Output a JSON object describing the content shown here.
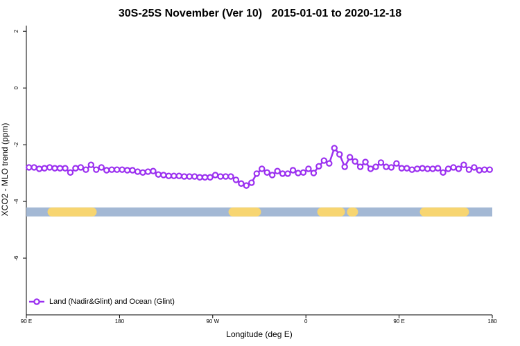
{
  "chart_data": {
    "type": "line",
    "title": "30S-25S November (Ver 10)   2015-01-01 to 2020-12-18",
    "x_label": "Longitude (deg E)",
    "y_label": "XCO2 - MLO trend (ppm)",
    "xlim": [
      90,
      540
    ],
    "xticks": [
      {
        "value": 90,
        "label": "90 E"
      },
      180,
      {
        "value": 270,
        "label": "90 W"
      },
      {
        "value": 360,
        "label": "0"
      },
      {
        "value": 450,
        "label": "90 E"
      },
      {
        "value": 540,
        "label": "180"
      }
    ],
    "ylim": [
      -8,
      2.2
    ],
    "yticks": [
      2,
      0,
      -2,
      -4,
      -6
    ],
    "legend": "bottom-left",
    "x": [
      92.5,
      97.5,
      102.5,
      107.5,
      112.5,
      117.5,
      122.5,
      127.5,
      132.5,
      137.5,
      142.5,
      147.5,
      152.5,
      157.5,
      162.5,
      167.5,
      172.5,
      177.5,
      182.5,
      187.5,
      192.5,
      197.5,
      202.5,
      207.5,
      212.5,
      217.5,
      222.5,
      227.5,
      232.5,
      237.5,
      242.5,
      247.5,
      252.5,
      257.5,
      262.5,
      267.5,
      272.5,
      277.5,
      282.5,
      287.5,
      292.5,
      297.5,
      302.5,
      307.5,
      312.5,
      317.5,
      322.5,
      327.5,
      332.5,
      337.5,
      342.5,
      347.5,
      352.5,
      357.5,
      362.5,
      367.5,
      372.5,
      377.5,
      382.5,
      387.5,
      392.5,
      397.5,
      402.5,
      407.5,
      412.5,
      417.5,
      422.5,
      427.5,
      432.5,
      437.5,
      442.5,
      447.5,
      452.5,
      457.5,
      462.5,
      467.5,
      472.5,
      477.5,
      482.5,
      487.5,
      492.5,
      497.5,
      502.5,
      507.5,
      512.5,
      517.5,
      522.5,
      527.5,
      532.5,
      537.5
    ],
    "series": [
      {
        "name": "Land (Nadir&Glint) and Ocean (Glint)",
        "color": "#9b30f0",
        "values": [
          -2.8,
          -2.8,
          -2.85,
          -2.83,
          -2.8,
          -2.83,
          -2.83,
          -2.83,
          -2.98,
          -2.83,
          -2.8,
          -2.88,
          -2.71,
          -2.88,
          -2.8,
          -2.9,
          -2.88,
          -2.88,
          -2.88,
          -2.9,
          -2.9,
          -2.95,
          -2.98,
          -2.95,
          -2.93,
          -3.05,
          -3.07,
          -3.1,
          -3.1,
          -3.1,
          -3.12,
          -3.12,
          -3.12,
          -3.15,
          -3.15,
          -3.15,
          -3.07,
          -3.12,
          -3.12,
          -3.12,
          -3.24,
          -3.37,
          -3.44,
          -3.34,
          -3.02,
          -2.85,
          -2.98,
          -3.07,
          -2.93,
          -3.02,
          -3.02,
          -2.9,
          -3.0,
          -2.98,
          -2.85,
          -3.0,
          -2.76,
          -2.56,
          -2.66,
          -2.12,
          -2.34,
          -2.78,
          -2.44,
          -2.59,
          -2.78,
          -2.61,
          -2.85,
          -2.78,
          -2.63,
          -2.78,
          -2.8,
          -2.66,
          -2.83,
          -2.83,
          -2.88,
          -2.85,
          -2.83,
          -2.85,
          -2.85,
          -2.83,
          -2.98,
          -2.85,
          -2.8,
          -2.85,
          -2.71,
          -2.88,
          -2.8,
          -2.9,
          -2.88,
          -2.88
        ]
      }
    ],
    "land_band": {
      "y": -4.37,
      "ocean_color": "#a3b8d4",
      "land_color": "#f7d571",
      "land": [
        [
          114.8,
          153.6
        ],
        [
          289.6,
          312.3
        ],
        [
          375.3,
          393.4
        ],
        [
          404,
          406
        ],
        [
          474.4,
          513.2
        ]
      ]
    }
  }
}
